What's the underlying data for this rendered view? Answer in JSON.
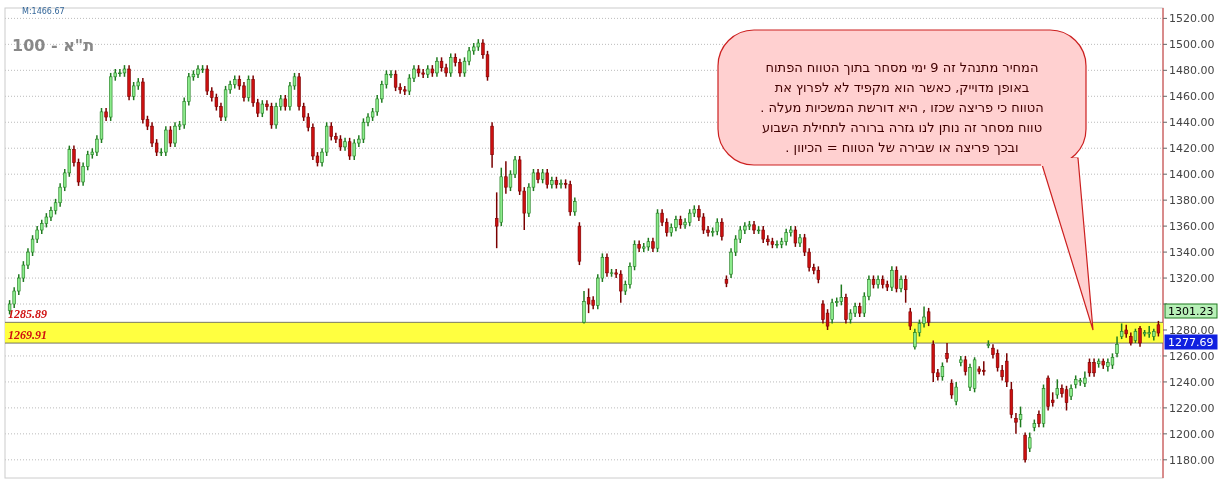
{
  "chart_data": {
    "type": "candlestick",
    "title": "ת\"א - 100",
    "categories": [
      null,
      null,
      null,
      null,
      null,
      null,
      null,
      null,
      null,
      null,
      null,
      null,
      null,
      null,
      null,
      null,
      null,
      null,
      null,
      null,
      null,
      null,
      null,
      null,
      null,
      null,
      null,
      null,
      null,
      null,
      null,
      null,
      null,
      null,
      null,
      null,
      null,
      null,
      null,
      null,
      null,
      null,
      null,
      null,
      null,
      null,
      null,
      null,
      null,
      null,
      null,
      null,
      null,
      null,
      null,
      null,
      null,
      null,
      null,
      null,
      null,
      null,
      null,
      null,
      null,
      null,
      null,
      null,
      null,
      null,
      null,
      null,
      null,
      null,
      null,
      null,
      null,
      null,
      null,
      null,
      null,
      null,
      null,
      null,
      null,
      null,
      null,
      null,
      null,
      null,
      null,
      null,
      null,
      null,
      null,
      null,
      null,
      null,
      null,
      null,
      null,
      null,
      null,
      null,
      null,
      null,
      null,
      null,
      null,
      null,
      null,
      null,
      null,
      null,
      null,
      null,
      null,
      null,
      null,
      null,
      null,
      null,
      null,
      null,
      null,
      null,
      null,
      null,
      null,
      null,
      null,
      null,
      null,
      null,
      null,
      null,
      null,
      null,
      null,
      null,
      null,
      null,
      null,
      null,
      null,
      null,
      null,
      null,
      null,
      null,
      null,
      null,
      null,
      null,
      null,
      null,
      null,
      null,
      null,
      null,
      null,
      null,
      null,
      null,
      null,
      null,
      null,
      null,
      null,
      null,
      null,
      null,
      null,
      null,
      null,
      null,
      null,
      null,
      null,
      null,
      null,
      null,
      null,
      null,
      null,
      null,
      null,
      null,
      null,
      null,
      null,
      null,
      null,
      null,
      null,
      null,
      null,
      null,
      null,
      null,
      null,
      null,
      null,
      null,
      null,
      null,
      null,
      null,
      null,
      null,
      null,
      null,
      null,
      null,
      null,
      null,
      null,
      null,
      null,
      null,
      null,
      null,
      null,
      null,
      null,
      null,
      null,
      null,
      null,
      null,
      null,
      null,
      null,
      null,
      null,
      null,
      null,
      null,
      null,
      null,
      null,
      null,
      null,
      null,
      null,
      null,
      null,
      null,
      null,
      null,
      null
    ],
    "ohlc": [
      [
        1295,
        1303,
        1292,
        1300
      ],
      [
        1300,
        1313,
        1297,
        1310
      ],
      [
        1310,
        1323,
        1307,
        1320
      ],
      [
        1320,
        1333,
        1317,
        1330
      ],
      [
        1330,
        1343,
        1327,
        1340
      ],
      [
        1340,
        1353,
        1337,
        1350
      ],
      [
        1350,
        1360,
        1347,
        1357
      ],
      [
        1357,
        1365,
        1354,
        1362
      ],
      [
        1362,
        1370,
        1359,
        1367
      ],
      [
        1367,
        1375,
        1364,
        1372
      ],
      [
        1372,
        1381,
        1369,
        1378
      ],
      [
        1378,
        1393,
        1375,
        1390
      ],
      [
        1390,
        1404,
        1387,
        1401
      ],
      [
        1401,
        1422,
        1398,
        1419
      ],
      [
        1419,
        1422,
        1406,
        1409
      ],
      [
        1409,
        1412,
        1391,
        1394
      ],
      [
        1394,
        1409,
        1391,
        1406
      ],
      [
        1406,
        1418,
        1403,
        1415
      ],
      [
        1415,
        1420,
        1412,
        1417
      ],
      [
        1417,
        1430,
        1414,
        1427
      ],
      [
        1427,
        1451,
        1424,
        1448
      ],
      [
        1448,
        1451,
        1441,
        1444
      ],
      [
        1444,
        1478,
        1441,
        1475
      ],
      [
        1475,
        1481,
        1472,
        1478
      ],
      [
        1478,
        1481,
        1475,
        1478
      ],
      [
        1478,
        1484,
        1475,
        1481
      ],
      [
        1481,
        1484,
        1457,
        1460
      ],
      [
        1460,
        1471,
        1457,
        1468
      ],
      [
        1468,
        1474,
        1465,
        1471
      ],
      [
        1471,
        1474,
        1439,
        1442
      ],
      [
        1442,
        1445,
        1434,
        1437
      ],
      [
        1437,
        1440,
        1421,
        1424
      ],
      [
        1424,
        1427,
        1414,
        1417
      ],
      [
        1417,
        1420,
        1414,
        1417
      ],
      [
        1417,
        1437,
        1414,
        1434
      ],
      [
        1434,
        1437,
        1421,
        1424
      ],
      [
        1424,
        1440,
        1421,
        1437
      ],
      [
        1437,
        1441,
        1434,
        1438
      ],
      [
        1438,
        1459,
        1435,
        1456
      ],
      [
        1456,
        1478,
        1453,
        1475
      ],
      [
        1475,
        1480,
        1472,
        1477
      ],
      [
        1477,
        1484,
        1474,
        1481
      ],
      [
        1481,
        1484,
        1478,
        1481
      ],
      [
        1481,
        1484,
        1461,
        1464
      ],
      [
        1464,
        1467,
        1456,
        1459
      ],
      [
        1459,
        1462,
        1449,
        1452
      ],
      [
        1452,
        1455,
        1441,
        1444
      ],
      [
        1444,
        1468,
        1441,
        1465
      ],
      [
        1465,
        1472,
        1462,
        1469
      ],
      [
        1469,
        1476,
        1466,
        1473
      ],
      [
        1473,
        1476,
        1465,
        1468
      ],
      [
        1468,
        1471,
        1456,
        1459
      ],
      [
        1459,
        1476,
        1456,
        1473
      ],
      [
        1473,
        1476,
        1452,
        1455
      ],
      [
        1455,
        1458,
        1444,
        1447
      ],
      [
        1447,
        1457,
        1444,
        1454
      ],
      [
        1454,
        1457,
        1449,
        1452
      ],
      [
        1452,
        1455,
        1435,
        1438
      ],
      [
        1438,
        1455,
        1435,
        1452
      ],
      [
        1452,
        1461,
        1449,
        1458
      ],
      [
        1458,
        1461,
        1449,
        1452
      ],
      [
        1452,
        1471,
        1449,
        1468
      ],
      [
        1468,
        1478,
        1465,
        1475
      ],
      [
        1475,
        1478,
        1449,
        1452
      ],
      [
        1452,
        1455,
        1441,
        1444
      ],
      [
        1444,
        1447,
        1433,
        1436
      ],
      [
        1436,
        1439,
        1411,
        1414
      ],
      [
        1414,
        1417,
        1406,
        1409
      ],
      [
        1409,
        1420,
        1406,
        1417
      ],
      [
        1417,
        1440,
        1414,
        1437
      ],
      [
        1437,
        1440,
        1426,
        1429
      ],
      [
        1429,
        1432,
        1424,
        1427
      ],
      [
        1427,
        1430,
        1418,
        1421
      ],
      [
        1421,
        1428,
        1418,
        1425
      ],
      [
        1425,
        1428,
        1411,
        1414
      ],
      [
        1414,
        1427,
        1411,
        1424
      ],
      [
        1424,
        1430,
        1421,
        1427
      ],
      [
        1427,
        1443,
        1424,
        1440
      ],
      [
        1440,
        1447,
        1437,
        1444
      ],
      [
        1444,
        1451,
        1441,
        1448
      ],
      [
        1448,
        1461,
        1445,
        1458
      ],
      [
        1458,
        1472,
        1455,
        1469
      ],
      [
        1469,
        1480,
        1466,
        1477
      ],
      [
        1477,
        1480,
        1474,
        1477
      ],
      [
        1477,
        1480,
        1464,
        1467
      ],
      [
        1467,
        1470,
        1462,
        1465
      ],
      [
        1465,
        1468,
        1461,
        1464
      ],
      [
        1464,
        1477,
        1461,
        1474
      ],
      [
        1474,
        1484,
        1471,
        1481
      ],
      [
        1481,
        1484,
        1475,
        1478
      ],
      [
        1478,
        1481,
        1474,
        1477
      ],
      [
        1477,
        1484,
        1474,
        1481
      ],
      [
        1481,
        1484,
        1475,
        1478
      ],
      [
        1478,
        1490,
        1475,
        1487
      ],
      [
        1487,
        1490,
        1479,
        1482
      ],
      [
        1482,
        1485,
        1475,
        1478
      ],
      [
        1478,
        1493,
        1475,
        1490
      ],
      [
        1490,
        1493,
        1483,
        1486
      ],
      [
        1486,
        1489,
        1475,
        1478
      ],
      [
        1478,
        1490,
        1475,
        1487
      ],
      [
        1487,
        1498,
        1484,
        1495
      ],
      [
        1495,
        1501,
        1492,
        1498
      ],
      [
        1498,
        1504,
        1495,
        1501
      ],
      [
        1501,
        1504,
        1489,
        1492
      ],
      [
        1492,
        1495,
        1472,
        1475
      ],
      [
        1437,
        1440,
        1405,
        1415
      ],
      [
        1366,
        1386,
        1343,
        1360
      ],
      [
        1363,
        1405,
        1360,
        1398
      ],
      [
        1398,
        1410,
        1385,
        1390
      ],
      [
        1390,
        1403,
        1387,
        1400
      ],
      [
        1400,
        1414,
        1397,
        1411
      ],
      [
        1411,
        1414,
        1384,
        1387
      ],
      [
        1387,
        1390,
        1357,
        1370
      ],
      [
        1370,
        1393,
        1367,
        1390
      ],
      [
        1390,
        1404,
        1387,
        1401
      ],
      [
        1401,
        1404,
        1393,
        1396
      ],
      [
        1396,
        1404,
        1393,
        1401
      ],
      [
        1401,
        1404,
        1389,
        1392
      ],
      [
        1392,
        1398,
        1389,
        1395
      ],
      [
        1395,
        1398,
        1389,
        1392
      ],
      [
        1392,
        1396,
        1389,
        1393
      ],
      [
        1393,
        1396,
        1389,
        1392
      ],
      [
        1392,
        1395,
        1368,
        1371
      ],
      [
        1371,
        1382,
        1368,
        1379
      ],
      [
        1360,
        1363,
        1330,
        1333
      ],
      [
        1286,
        1310,
        1285,
        1302
      ],
      [
        1305,
        1312,
        1293,
        1300
      ],
      [
        1303,
        1306,
        1296,
        1299
      ],
      [
        1299,
        1323,
        1296,
        1320
      ],
      [
        1320,
        1339,
        1317,
        1336
      ],
      [
        1336,
        1339,
        1321,
        1324
      ],
      [
        1324,
        1327,
        1321,
        1324
      ],
      [
        1324,
        1327,
        1320,
        1323
      ],
      [
        1323,
        1326,
        1301,
        1310
      ],
      [
        1310,
        1318,
        1307,
        1315
      ],
      [
        1315,
        1332,
        1312,
        1329
      ],
      [
        1329,
        1349,
        1326,
        1346
      ],
      [
        1346,
        1349,
        1340,
        1343
      ],
      [
        1343,
        1347,
        1340,
        1344
      ],
      [
        1344,
        1351,
        1341,
        1348
      ],
      [
        1348,
        1351,
        1340,
        1343
      ],
      [
        1343,
        1373,
        1340,
        1370
      ],
      [
        1370,
        1373,
        1360,
        1363
      ],
      [
        1363,
        1366,
        1352,
        1355
      ],
      [
        1355,
        1362,
        1352,
        1359
      ],
      [
        1359,
        1368,
        1356,
        1365
      ],
      [
        1365,
        1368,
        1358,
        1361
      ],
      [
        1361,
        1366,
        1358,
        1363
      ],
      [
        1363,
        1373,
        1360,
        1370
      ],
      [
        1370,
        1376,
        1367,
        1373
      ],
      [
        1373,
        1376,
        1364,
        1367
      ],
      [
        1367,
        1370,
        1354,
        1357
      ],
      [
        1357,
        1360,
        1352,
        1355
      ],
      [
        1355,
        1359,
        1352,
        1356
      ],
      [
        1356,
        1366,
        1353,
        1363
      ],
      [
        1363,
        1366,
        1349,
        1352
      ],
      [
        1319,
        1322,
        1313,
        1316
      ],
      [
        1323,
        1343,
        1320,
        1340
      ],
      [
        1340,
        1353,
        1337,
        1350
      ],
      [
        1350,
        1360,
        1347,
        1357
      ],
      [
        1357,
        1363,
        1354,
        1360
      ],
      [
        1360,
        1364,
        1357,
        1361
      ],
      [
        1361,
        1364,
        1354,
        1357
      ],
      [
        1357,
        1360,
        1354,
        1357
      ],
      [
        1357,
        1360,
        1347,
        1350
      ],
      [
        1350,
        1353,
        1345,
        1348
      ],
      [
        1348,
        1351,
        1343,
        1346
      ],
      [
        1346,
        1349,
        1343,
        1346
      ],
      [
        1346,
        1351,
        1343,
        1348
      ],
      [
        1348,
        1358,
        1345,
        1355
      ],
      [
        1355,
        1360,
        1352,
        1357
      ],
      [
        1357,
        1360,
        1344,
        1347
      ],
      [
        1347,
        1354,
        1344,
        1351
      ],
      [
        1351,
        1354,
        1337,
        1340
      ],
      [
        1340,
        1343,
        1325,
        1328
      ],
      [
        1328,
        1331,
        1323,
        1326
      ],
      [
        1326,
        1329,
        1316,
        1319
      ],
      [
        1300,
        1303,
        1285,
        1288
      ],
      [
        1293,
        1296,
        1280,
        1283
      ],
      [
        1288,
        1304,
        1285,
        1301
      ],
      [
        1301,
        1305,
        1298,
        1302
      ],
      [
        1302,
        1315,
        1299,
        1305
      ],
      [
        1305,
        1308,
        1285,
        1288
      ],
      [
        1288,
        1296,
        1285,
        1293
      ],
      [
        1293,
        1301,
        1290,
        1298
      ],
      [
        1298,
        1301,
        1290,
        1293
      ],
      [
        1293,
        1309,
        1290,
        1306
      ],
      [
        1306,
        1322,
        1303,
        1319
      ],
      [
        1319,
        1322,
        1312,
        1315
      ],
      [
        1315,
        1322,
        1312,
        1319
      ],
      [
        1319,
        1322,
        1312,
        1315
      ],
      [
        1315,
        1318,
        1310,
        1313
      ],
      [
        1313,
        1329,
        1310,
        1326
      ],
      [
        1326,
        1329,
        1309,
        1312
      ],
      [
        1312,
        1322,
        1309,
        1319
      ],
      [
        1319,
        1322,
        1301,
        1311
      ],
      [
        1294,
        1297,
        1280,
        1283
      ],
      [
        1267,
        1281,
        1265,
        1278
      ],
      [
        1278,
        1288,
        1275,
        1285
      ],
      [
        1285,
        1298,
        1282,
        1290
      ],
      [
        1294,
        1297,
        1283,
        1286
      ],
      [
        1269,
        1272,
        1240,
        1247
      ],
      [
        1247,
        1250,
        1241,
        1244
      ],
      [
        1244,
        1255,
        1241,
        1252
      ],
      [
        1262,
        1270,
        1255,
        1258
      ],
      [
        1239,
        1242,
        1227,
        1230
      ],
      [
        1225,
        1240,
        1222,
        1236
      ],
      [
        1255,
        1260,
        1252,
        1257
      ],
      [
        1257,
        1260,
        1245,
        1248
      ],
      [
        1236,
        1254,
        1233,
        1251
      ],
      [
        1235,
        1259,
        1232,
        1257
      ],
      [
        1250,
        1252,
        1246,
        1248
      ],
      [
        1249,
        1256,
        1245,
        1248
      ],
      [
        1268,
        1272,
        1266,
        1269
      ],
      [
        1266,
        1269,
        1258,
        1261
      ],
      [
        1262,
        1265,
        1248,
        1251
      ],
      [
        1249,
        1253,
        1241,
        1244
      ],
      [
        1256,
        1262,
        1236,
        1240
      ],
      [
        1234,
        1240,
        1212,
        1215
      ],
      [
        1212,
        1216,
        1200,
        1209
      ],
      [
        1211,
        1221,
        1205,
        1215
      ],
      [
        1199,
        1201,
        1178,
        1180
      ],
      [
        1189,
        1201,
        1186,
        1197
      ],
      [
        1205,
        1211,
        1202,
        1208
      ],
      [
        1215,
        1218,
        1205,
        1208
      ],
      [
        1208,
        1238,
        1205,
        1235
      ],
      [
        1243,
        1245,
        1218,
        1221
      ],
      [
        1226,
        1232,
        1221,
        1224
      ],
      [
        1230,
        1242,
        1227,
        1235
      ],
      [
        1235,
        1238,
        1228,
        1231
      ],
      [
        1234,
        1237,
        1218,
        1224
      ],
      [
        1229,
        1238,
        1226,
        1235
      ],
      [
        1238,
        1245,
        1235,
        1242
      ],
      [
        1240,
        1243,
        1237,
        1241
      ],
      [
        1239,
        1248,
        1236,
        1243
      ],
      [
        1255,
        1258,
        1244,
        1247
      ],
      [
        1255,
        1258,
        1244,
        1247
      ],
      [
        1254,
        1258,
        1251,
        1256
      ],
      [
        1256,
        1258,
        1250,
        1253
      ],
      [
        1252,
        1258,
        1248,
        1255
      ],
      [
        1253,
        1262,
        1250,
        1259
      ],
      [
        1262,
        1275,
        1259,
        1269
      ],
      [
        1275,
        1285,
        1273,
        1279
      ],
      [
        1280,
        1284,
        1274,
        1277
      ],
      [
        1275,
        1278,
        1268,
        1270
      ],
      [
        1272,
        1281,
        1270,
        1279
      ],
      [
        1281,
        1283,
        1267,
        1270
      ],
      [
        1277,
        1280,
        1275,
        1278
      ],
      [
        1277,
        1283,
        1274,
        1278
      ],
      [
        1275,
        1281,
        1272,
        1279
      ],
      [
        1284,
        1287,
        1275,
        1277.69
      ]
    ],
    "ylim": [
      1166,
      1528
    ],
    "yticks": [
      {
        "value": 1180,
        "label": "1180.00"
      },
      {
        "value": 1200,
        "label": "1200.00"
      },
      {
        "value": 1220,
        "label": "1220.00"
      },
      {
        "value": 1240,
        "label": "1240.00"
      },
      {
        "value": 1260,
        "label": "1260.00"
      },
      {
        "value": 1280,
        "label": "1280.00"
      },
      {
        "value": 1300,
        "label": null
      },
      {
        "value": 1320,
        "label": "1320.00"
      },
      {
        "value": 1340,
        "label": "1340.00"
      },
      {
        "value": 1360,
        "label": "1360.00"
      },
      {
        "value": 1380,
        "label": "1380.00"
      },
      {
        "value": 1400,
        "label": "1400.00"
      },
      {
        "value": 1420,
        "label": "1420.00"
      },
      {
        "value": 1440,
        "label": "1440.00"
      },
      {
        "value": 1460,
        "label": "1460.00"
      },
      {
        "value": 1480,
        "label": "1480.00"
      },
      {
        "value": 1500,
        "label": "1500.00"
      },
      {
        "value": 1520,
        "label": "1520.00"
      }
    ],
    "grid": "y",
    "ref_lines": [
      {
        "axis": "y",
        "value": 1285.89,
        "label": "1285.89"
      },
      {
        "axis": "y",
        "value": 1269.91,
        "label": "1269.91"
      }
    ],
    "bands": [
      {
        "axis": "y",
        "from": 1269.91,
        "to": 1285.89,
        "color": "#ffff40"
      }
    ],
    "annotations": [
      "M:1466.67",
      "1301.23",
      "1277.69",
      "המחיר מתנהל זה 9 ימי מסחר בתוך הטווח הפתוח",
      "באופן מדוייק, כאשר הוא מקפיד לא לפרוץ את",
      "הטווח כי פריצה שכזו , היא דורשת המשכיות מעלה .",
      "טווח מסחר זה נותן לנו גזרה ברורה לתחילת השבוע",
      "ובכך פריצה או שבירה של הטווח = הכיוון ."
    ]
  }
}
